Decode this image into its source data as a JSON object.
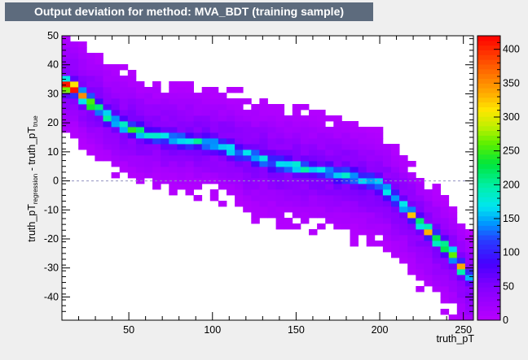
{
  "title": "Output deviation for method: MVA_BDT (training sample)",
  "chart_data": {
    "type": "heatmap",
    "title": "Output deviation for method: MVA_BDT (training sample)",
    "xlabel": "truth_pT",
    "ylabel": {
      "main": "truth_pT",
      "sub1": "regression",
      "mid": " - truth_pT",
      "sub2": "true"
    },
    "xlim": [
      10,
      256
    ],
    "ylim": [
      -48,
      50
    ],
    "x_ticks": [
      50,
      100,
      150,
      200,
      250
    ],
    "y_ticks": [
      -40,
      -30,
      -20,
      -10,
      0,
      10,
      20,
      30,
      40,
      50
    ],
    "zlim": [
      0,
      420
    ],
    "z_ticks": [
      0,
      50,
      100,
      150,
      200,
      250,
      300,
      350,
      400
    ],
    "reference_line_y": 0,
    "bins": {
      "nx": 50,
      "ny": 50
    },
    "ridge": {
      "description": "main band of deviation vs truth_pT",
      "points": [
        [
          15,
          33
        ],
        [
          25,
          28
        ],
        [
          40,
          21
        ],
        [
          60,
          16
        ],
        [
          80,
          14
        ],
        [
          100,
          13
        ],
        [
          120,
          9
        ],
        [
          140,
          6
        ],
        [
          160,
          4
        ],
        [
          180,
          2
        ],
        [
          200,
          -1
        ],
        [
          215,
          -9
        ],
        [
          230,
          -18
        ],
        [
          245,
          -26
        ],
        [
          252,
          -33
        ]
      ]
    },
    "peak_count": 410
  }
}
